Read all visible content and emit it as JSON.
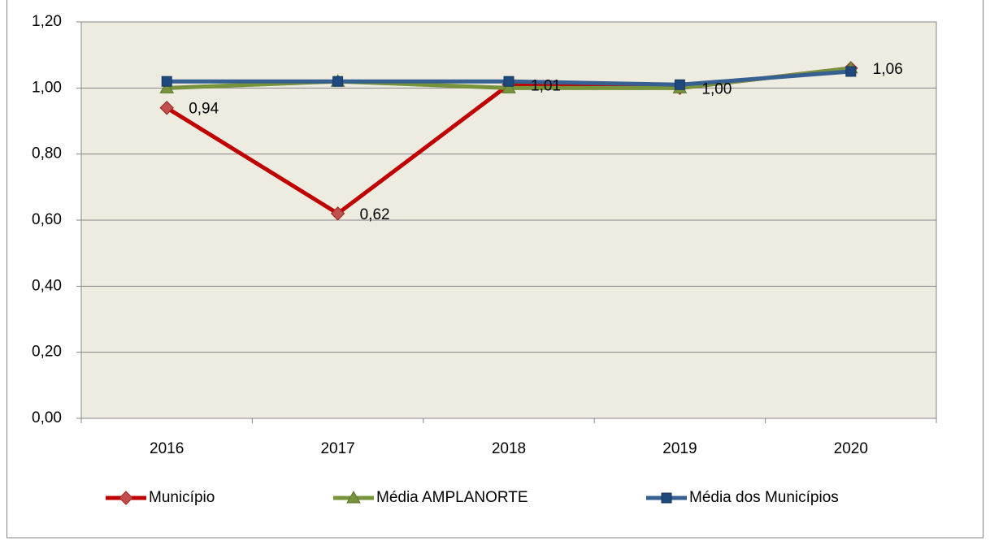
{
  "chart_data": {
    "type": "line",
    "categories": [
      "2016",
      "2017",
      "2018",
      "2019",
      "2020"
    ],
    "series": [
      {
        "name": "Município",
        "color": "#c00000",
        "marker_color": "#c0504d",
        "marker": "diamond",
        "values": [
          0.94,
          0.62,
          1.01,
          1.0,
          1.06
        ],
        "value_labels": [
          "0,94",
          "0,62",
          "1,01",
          "1,00",
          "1,06"
        ]
      },
      {
        "name": "Média AMPLANORTE",
        "color": "#77933c",
        "marker_color": "#77933c",
        "marker": "triangle",
        "values": [
          1.0,
          1.02,
          1.0,
          1.0,
          1.06
        ]
      },
      {
        "name": "Média dos Municípios",
        "color": "#376092",
        "marker_color": "#1f497d",
        "marker": "square",
        "values": [
          1.02,
          1.02,
          1.02,
          1.01,
          1.05
        ]
      }
    ],
    "ylim": [
      0,
      1.2
    ],
    "yticks": [
      {
        "value": 0,
        "label": "0,00"
      },
      {
        "value": 0.2,
        "label": "0,20"
      },
      {
        "value": 0.4,
        "label": "0,40"
      },
      {
        "value": 0.6,
        "label": "0,60"
      },
      {
        "value": 0.8,
        "label": "0,80"
      },
      {
        "value": 1.0,
        "label": "1,00"
      },
      {
        "value": 1.2,
        "label": "1,20"
      }
    ],
    "grid": true,
    "plot_background": "#eeece1",
    "legend": "bottom"
  }
}
